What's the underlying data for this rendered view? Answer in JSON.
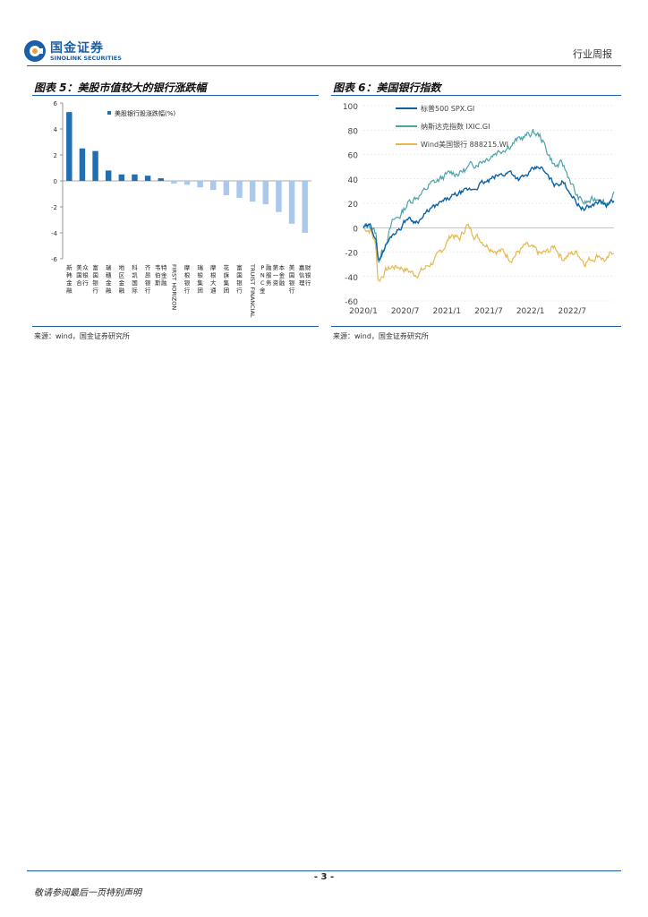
{
  "header": {
    "logo_cn": "国金证券",
    "logo_en": "SINOLINK SECURITIES",
    "section": "行业周报"
  },
  "figure5": {
    "title": "图表 5：美股市值较大的银行涨跌幅",
    "source": "来源：wind，国金证券研究所"
  },
  "figure6": {
    "title": "图表 6：美国银行指数",
    "source": "来源：wind，国金证券研究所"
  },
  "footer": {
    "page_number": "- 3 -",
    "disclaimer": "敬请参阅最后一页特别声明"
  },
  "colors": {
    "brand": "#1a5fa8",
    "bar_pos": "#1f6fb5",
    "bar_neg": "#a9c8ec",
    "spx": "#0c62a6",
    "ixic": "#4ea3a8",
    "wind": "#e7b84f"
  },
  "chart_data": [
    {
      "type": "bar",
      "legend": "美股银行股涨跌幅(%)",
      "categories": [
        "新韩金融",
        "美国合众银行",
        "富国银行",
        "瑞穗金融",
        "地区金融",
        "科凯国际",
        "齐昂银行",
        "韦伯斯特金融",
        "FIRST HORIZON",
        "摩根银行",
        "瑞银集团",
        "摩根大通",
        "花旗集团",
        "富国银行",
        "TRUIST FINANCIAL",
        "PNC金融服务",
        "第一资本金融",
        "美国银行",
        "嘉信理财银行"
      ],
      "values": [
        5.3,
        2.5,
        2.3,
        0.8,
        0.5,
        0.5,
        0.4,
        0.2,
        -0.2,
        -0.3,
        -0.5,
        -0.7,
        -1.1,
        -1.3,
        -1.6,
        -1.8,
        -2.4,
        -3.3,
        -4.0
      ],
      "ylim": [
        -6,
        6
      ],
      "yticks": [
        -6,
        -4,
        -2,
        0,
        2,
        4,
        6
      ]
    },
    {
      "type": "line",
      "series": [
        {
          "name": "标普500 SPX.GI"
        },
        {
          "name": "纳斯达克指数 IXIC.GI"
        },
        {
          "name": "Wind美国银行 888215.WI"
        }
      ],
      "anchors_x": [
        0,
        1,
        1.7,
        2,
        3,
        4,
        5,
        6,
        7,
        8,
        9,
        10,
        11,
        12,
        13,
        14,
        15,
        16,
        17,
        18,
        19,
        20,
        21,
        22,
        23,
        24,
        25,
        26,
        27,
        28,
        29,
        30,
        31,
        32,
        33,
        34
      ],
      "spx_anchors": [
        0,
        1,
        -8,
        -28,
        -15,
        -5,
        0,
        8,
        5,
        8,
        15,
        18,
        22,
        25,
        28,
        30,
        32,
        36,
        38,
        42,
        44,
        46,
        40,
        42,
        47,
        50,
        42,
        35,
        38,
        30,
        20,
        15,
        18,
        22,
        18,
        22
      ],
      "ixic_anchors": [
        0,
        2,
        -5,
        -28,
        -12,
        5,
        10,
        20,
        25,
        28,
        35,
        38,
        42,
        45,
        45,
        48,
        52,
        55,
        58,
        62,
        65,
        68,
        72,
        75,
        78,
        75,
        62,
        50,
        52,
        40,
        25,
        20,
        22,
        25,
        20,
        26
      ],
      "wind_anchors": [
        0,
        -2,
        -15,
        -44,
        -35,
        -32,
        -32,
        -35,
        -38,
        -35,
        -30,
        -25,
        -15,
        -5,
        -10,
        2,
        -5,
        -10,
        -15,
        -18,
        -20,
        -25,
        -20,
        -15,
        -18,
        -22,
        -20,
        -15,
        -25,
        -22,
        -20,
        -28,
        -25,
        -22,
        -28,
        -18
      ],
      "xticks": [
        "2020/1",
        "2020/7",
        "2021/1",
        "2021/7",
        "2022/1",
        "2022/7"
      ],
      "ylim": [
        -60,
        100
      ],
      "yticks": [
        -60,
        -40,
        -20,
        0,
        20,
        40,
        60,
        80,
        100
      ]
    }
  ]
}
